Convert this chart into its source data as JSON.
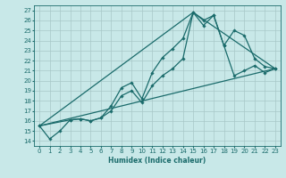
{
  "title": "",
  "xlabel": "Humidex (Indice chaleur)",
  "bg_color": "#c8e8e8",
  "grid_color": "#a8c8c8",
  "line_color": "#1a6b6b",
  "xlim": [
    -0.5,
    23.5
  ],
  "ylim": [
    13.5,
    27.5
  ],
  "xticks": [
    0,
    1,
    2,
    3,
    4,
    5,
    6,
    7,
    8,
    9,
    10,
    11,
    12,
    13,
    14,
    15,
    16,
    17,
    18,
    19,
    20,
    21,
    22,
    23
  ],
  "yticks": [
    14,
    15,
    16,
    17,
    18,
    19,
    20,
    21,
    22,
    23,
    24,
    25,
    26,
    27
  ],
  "line1_x": [
    0,
    1,
    2,
    3,
    4,
    5,
    6,
    7,
    8,
    9,
    10,
    11,
    12,
    13,
    14,
    15,
    16,
    17,
    18,
    19,
    20,
    21,
    22,
    23
  ],
  "line1_y": [
    15.5,
    14.2,
    15.0,
    16.1,
    16.2,
    16.0,
    16.3,
    17.5,
    19.3,
    19.8,
    18.2,
    20.8,
    22.3,
    23.2,
    24.2,
    26.8,
    26.0,
    26.5,
    23.5,
    25.0,
    24.5,
    22.2,
    21.4,
    21.2
  ],
  "line2_x": [
    0,
    3,
    4,
    5,
    6,
    7,
    8,
    9,
    10,
    11,
    12,
    13,
    14,
    15,
    16,
    17,
    18,
    19,
    20,
    21,
    22,
    23
  ],
  "line2_y": [
    15.5,
    16.1,
    16.2,
    16.0,
    16.3,
    17.0,
    18.5,
    19.0,
    17.8,
    19.5,
    20.5,
    21.2,
    22.2,
    26.8,
    25.5,
    26.5,
    23.5,
    20.5,
    21.0,
    21.5,
    20.8,
    21.2
  ],
  "line3_x": [
    0,
    23
  ],
  "line3_y": [
    15.5,
    21.2
  ],
  "line4_x": [
    0,
    15,
    23
  ],
  "line4_y": [
    15.5,
    26.8,
    21.2
  ]
}
